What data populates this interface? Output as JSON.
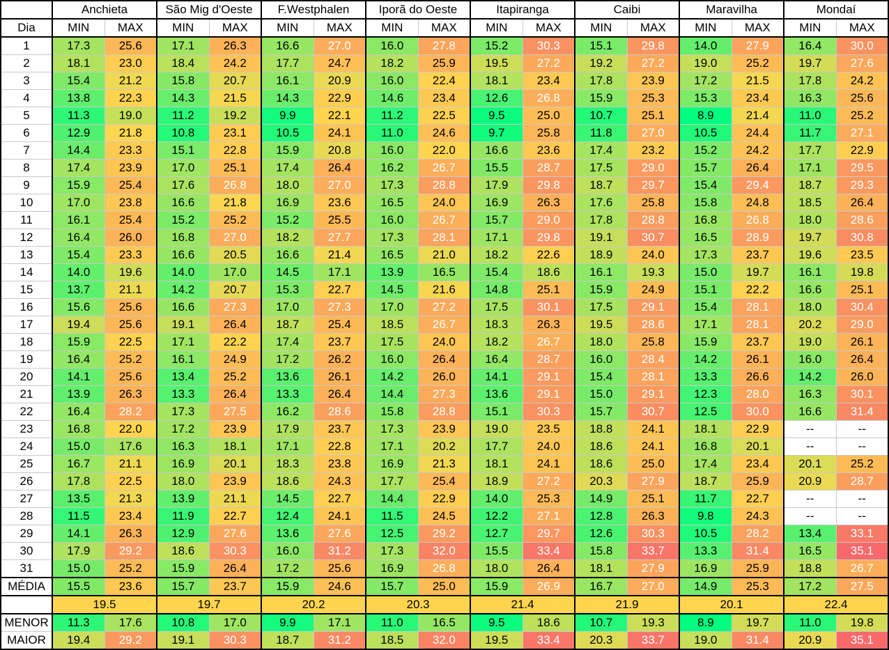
{
  "header": {
    "day_label": "Dia",
    "min_label": "MIN",
    "max_label": "MAX",
    "cities": [
      "Anchieta",
      "São Mig d'Oeste",
      "F.Westphalen",
      "Iporã do Oeste",
      "Itapiranga",
      "Caibi",
      "Maravilha",
      "Mondaí"
    ]
  },
  "rows": [
    {
      "day": "1",
      "v": [
        "17.3",
        "25.6",
        "17.1",
        "26.3",
        "16.6",
        "27.0",
        "16.0",
        "27.8",
        "15.2",
        "30.3",
        "15.1",
        "29.8",
        "14.0",
        "27.9",
        "16.4",
        "30.0"
      ]
    },
    {
      "day": "2",
      "v": [
        "18.1",
        "23.0",
        "18.4",
        "24.2",
        "17.7",
        "24.7",
        "18.2",
        "25.9",
        "19.5",
        "27.2",
        "19.2",
        "27.2",
        "19.0",
        "25.2",
        "19.7",
        "27.6"
      ]
    },
    {
      "day": "3",
      "v": [
        "15.4",
        "21.2",
        "15.8",
        "20.7",
        "16.1",
        "20.9",
        "16.0",
        "22.4",
        "18.1",
        "23.4",
        "17.8",
        "23.9",
        "17.2",
        "21.5",
        "17.8",
        "24.2"
      ]
    },
    {
      "day": "4",
      "v": [
        "13.8",
        "22.3",
        "14.3",
        "21.5",
        "14.3",
        "22.9",
        "14.6",
        "23.4",
        "12.6",
        "26.8",
        "15.9",
        "25.3",
        "15.3",
        "23.4",
        "16.3",
        "25.6"
      ]
    },
    {
      "day": "5",
      "v": [
        "11.3",
        "19.0",
        "11.2",
        "19.2",
        "9.9",
        "22.1",
        "11.2",
        "22.5",
        "9.5",
        "25.0",
        "10.7",
        "25.1",
        "8.9",
        "21.4",
        "11.0",
        "25.2"
      ]
    },
    {
      "day": "6",
      "v": [
        "12.9",
        "21.8",
        "10.8",
        "23.1",
        "10.5",
        "24.1",
        "11.0",
        "24.6",
        "9.7",
        "25.8",
        "11.8",
        "27.0",
        "10.5",
        "24.4",
        "11.7",
        "27.1"
      ]
    },
    {
      "day": "7",
      "v": [
        "14.4",
        "23.3",
        "15.1",
        "22.8",
        "15.9",
        "20.8",
        "16.0",
        "22.0",
        "16.6",
        "23.6",
        "17.4",
        "23.2",
        "15.2",
        "24.2",
        "17.7",
        "22.9"
      ]
    },
    {
      "day": "8",
      "v": [
        "17.4",
        "23.9",
        "17.0",
        "25.1",
        "17.4",
        "26.4",
        "16.2",
        "26.7",
        "15.5",
        "28.7",
        "17.5",
        "29.0",
        "15.7",
        "26.4",
        "17.1",
        "29.5"
      ]
    },
    {
      "day": "9",
      "v": [
        "15.9",
        "25.4",
        "17.6",
        "26.8",
        "18.0",
        "27.0",
        "17.3",
        "28.8",
        "17.9",
        "29.8",
        "18.7",
        "29.7",
        "15.4",
        "29.4",
        "18.7",
        "29.3"
      ]
    },
    {
      "day": "10",
      "v": [
        "17.0",
        "23.8",
        "16.6",
        "21.8",
        "16.9",
        "23.6",
        "16.5",
        "24.0",
        "16.9",
        "26.3",
        "17.6",
        "25.8",
        "15.8",
        "24.8",
        "18.5",
        "26.4"
      ]
    },
    {
      "day": "11",
      "v": [
        "16.1",
        "25.4",
        "15.2",
        "25.2",
        "15.2",
        "25.5",
        "16.0",
        "26.7",
        "15.7",
        "29.0",
        "17.8",
        "28.8",
        "16.8",
        "26.8",
        "18.0",
        "28.6"
      ]
    },
    {
      "day": "12",
      "v": [
        "16.4",
        "26.0",
        "16.8",
        "27.0",
        "18.2",
        "27.7",
        "17.3",
        "28.1",
        "17.1",
        "29.8",
        "19.1",
        "30.7",
        "16.5",
        "28.9",
        "19.7",
        "30.8"
      ]
    },
    {
      "day": "13",
      "v": [
        "15.4",
        "23.3",
        "16.6",
        "20.5",
        "16.6",
        "21.4",
        "16.5",
        "21.0",
        "18.2",
        "22.6",
        "18.9",
        "24.0",
        "17.3",
        "23.7",
        "19.6",
        "23.5"
      ]
    },
    {
      "day": "14",
      "v": [
        "14.0",
        "19.6",
        "14.0",
        "17.0",
        "14.5",
        "17.1",
        "13.9",
        "16.5",
        "15.4",
        "18.6",
        "16.1",
        "19.3",
        "15.0",
        "19.7",
        "16.1",
        "19.8"
      ]
    },
    {
      "day": "15",
      "v": [
        "13.7",
        "21.1",
        "14.2",
        "20.7",
        "15.3",
        "22.7",
        "14.5",
        "21.6",
        "14.8",
        "25.1",
        "15.9",
        "24.9",
        "15.1",
        "22.2",
        "16.6",
        "25.1"
      ]
    },
    {
      "day": "16",
      "v": [
        "15.6",
        "25.6",
        "16.6",
        "27.3",
        "17.0",
        "27.3",
        "17.0",
        "27.2",
        "17.5",
        "30.1",
        "17.5",
        "29.1",
        "15.4",
        "28.1",
        "18.0",
        "30.4"
      ]
    },
    {
      "day": "17",
      "v": [
        "19.4",
        "25.6",
        "19.1",
        "26.4",
        "18.7",
        "25.4",
        "18.5",
        "26.7",
        "18.3",
        "26.3",
        "19.5",
        "28.6",
        "17.1",
        "28.1",
        "20.2",
        "29.0"
      ]
    },
    {
      "day": "18",
      "v": [
        "15.9",
        "22.5",
        "17.1",
        "22.2",
        "17.4",
        "23.7",
        "17.5",
        "24.0",
        "18.2",
        "26.7",
        "18.0",
        "25.8",
        "15.9",
        "23.7",
        "19.0",
        "26.1"
      ]
    },
    {
      "day": "19",
      "v": [
        "16.4",
        "25.2",
        "16.1",
        "24.9",
        "17.2",
        "26.2",
        "16.0",
        "26.4",
        "16.4",
        "28.7",
        "16.0",
        "28.4",
        "14.2",
        "26.1",
        "16.0",
        "26.4"
      ]
    },
    {
      "day": "20",
      "v": [
        "14.1",
        "25.6",
        "13.4",
        "25.2",
        "13.6",
        "26.1",
        "14.2",
        "26.0",
        "14.1",
        "29.1",
        "15.4",
        "28.1",
        "13.3",
        "26.6",
        "14.2",
        "26.0"
      ]
    },
    {
      "day": "21",
      "v": [
        "13.9",
        "26.3",
        "13.3",
        "26.4",
        "13.3",
        "26.4",
        "14.4",
        "27.3",
        "13.6",
        "29.1",
        "15.0",
        "29.1",
        "12.3",
        "28.0",
        "16.3",
        "30.1"
      ]
    },
    {
      "day": "22",
      "v": [
        "16.4",
        "28.2",
        "17.3",
        "27.5",
        "16.2",
        "28.6",
        "15.8",
        "28.8",
        "15.1",
        "30.3",
        "15.7",
        "30.7",
        "12.5",
        "30.0",
        "16.6",
        "31.4"
      ]
    },
    {
      "day": "23",
      "v": [
        "16.8",
        "22.0",
        "17.2",
        "23.9",
        "17.9",
        "23.7",
        "17.3",
        "23.9",
        "19.0",
        "23.5",
        "18.8",
        "24.1",
        "18.1",
        "22.9",
        "--",
        "--"
      ]
    },
    {
      "day": "24",
      "v": [
        "15.0",
        "17.6",
        "16.3",
        "18.1",
        "17.1",
        "22.8",
        "17.1",
        "20.2",
        "17.7",
        "24.0",
        "18.6",
        "24.1",
        "16.8",
        "20.1",
        "--",
        "--"
      ]
    },
    {
      "day": "25",
      "v": [
        "16.7",
        "21.1",
        "16.9",
        "20.1",
        "18.3",
        "23.8",
        "16.9",
        "21.3",
        "18.1",
        "24.1",
        "18.6",
        "25.0",
        "17.4",
        "23.4",
        "20.1",
        "25.2"
      ]
    },
    {
      "day": "26",
      "v": [
        "17.8",
        "22.5",
        "18.0",
        "23.9",
        "18.6",
        "24.3",
        "17.7",
        "25.4",
        "18.9",
        "27.2",
        "20.3",
        "27.9",
        "18.7",
        "25.9",
        "20.9",
        "28.7"
      ]
    },
    {
      "day": "27",
      "v": [
        "13.5",
        "21.3",
        "13.9",
        "21.1",
        "14.5",
        "22.7",
        "14.4",
        "22.9",
        "14.0",
        "25.3",
        "14.9",
        "25.1",
        "11.7",
        "22.7",
        "--",
        "--"
      ]
    },
    {
      "day": "28",
      "v": [
        "11.5",
        "23.4",
        "11.9",
        "22.7",
        "12.4",
        "24.1",
        "11.5",
        "24.5",
        "12.2",
        "27.1",
        "12.8",
        "26.3",
        "9.8",
        "24.3",
        "--",
        "--"
      ]
    },
    {
      "day": "29",
      "v": [
        "14.1",
        "26.3",
        "12.9",
        "27.6",
        "13.6",
        "27.6",
        "12.5",
        "29.2",
        "12.7",
        "29.7",
        "12.6",
        "30.3",
        "10.5",
        "28.2",
        "13.4",
        "33.1"
      ]
    },
    {
      "day": "30",
      "v": [
        "17.9",
        "29.2",
        "18.6",
        "30.3",
        "16.0",
        "31.2",
        "17.3",
        "32.0",
        "15.5",
        "33.4",
        "15.8",
        "33.7",
        "13.3",
        "31.4",
        "16.5",
        "35.1"
      ]
    },
    {
      "day": "31",
      "v": [
        "15.0",
        "25.2",
        "15.9",
        "26.4",
        "17.2",
        "25.6",
        "16.9",
        "26.8",
        "18.0",
        "26.4",
        "18.1",
        "27.9",
        "16.9",
        "25.9",
        "18.8",
        "26.7"
      ]
    }
  ],
  "summary": {
    "media": {
      "label": "MÉDIA",
      "v": [
        "15.5",
        "23.6",
        "15.7",
        "23.7",
        "15.9",
        "24.6",
        "15.7",
        "25.0",
        "15.9",
        "26.9",
        "16.7",
        "27.0",
        "14.9",
        "25.3",
        "17.2",
        "27.5"
      ]
    },
    "overall": [
      "19.5",
      "19.7",
      "20.2",
      "20.3",
      "21.4",
      "21.9",
      "20.1",
      "22.4"
    ],
    "menor": {
      "label": "MENOR",
      "v": [
        "11.3",
        "17.6",
        "10.8",
        "17.0",
        "9.9",
        "17.1",
        "11.0",
        "16.5",
        "9.5",
        "18.6",
        "10.7",
        "19.3",
        "8.9",
        "19.7",
        "11.0",
        "19.8"
      ]
    },
    "maior": {
      "label": "MAIOR",
      "v": [
        "19.4",
        "29.2",
        "19.1",
        "30.3",
        "18.7",
        "31.2",
        "18.5",
        "32.0",
        "19.5",
        "33.4",
        "20.3",
        "33.7",
        "19.0",
        "31.4",
        "20.9",
        "35.1"
      ]
    }
  },
  "scale": {
    "min_value": 8.9,
    "max_value": 35.1,
    "low_color": "#00ff7f",
    "mid_color": "#ffd54f",
    "high_color": "#f8696b",
    "empty_color": "#ffffff"
  }
}
